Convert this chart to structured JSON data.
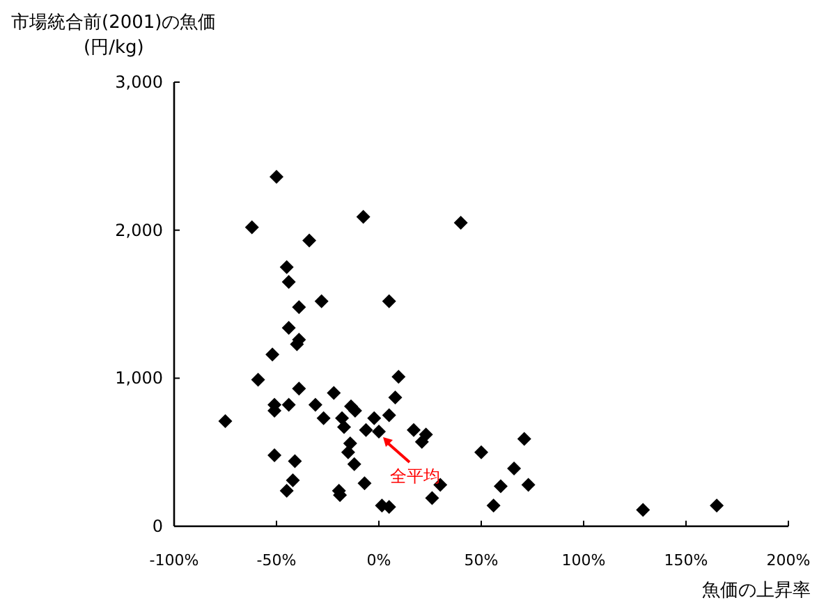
{
  "chart_data": {
    "type": "scatter",
    "ylabel": "市場統合前(2001)の魚価\n(円/kg)",
    "xlabel": "魚価の上昇率",
    "marker": "diamond",
    "color": "#000000",
    "x": [
      -50,
      -62,
      -7.6,
      -34,
      -45,
      -44,
      -39,
      -28,
      5,
      -44,
      -39,
      -40,
      -52,
      -59,
      9.6,
      -39,
      -22,
      8,
      -51,
      -51,
      -44,
      -31,
      -13.6,
      -11.6,
      -27,
      -75,
      -18,
      -17,
      -2.3,
      5,
      -6.3,
      0,
      17,
      23,
      21,
      -14,
      -15,
      -51,
      -41,
      -12,
      -42,
      -7,
      -45,
      -19.5,
      -19,
      1.5,
      5,
      26,
      40,
      30,
      50,
      56,
      59.5,
      66,
      71,
      73,
      129,
      165
    ],
    "values": [
      2360,
      2020,
      2090,
      1930,
      1750,
      1650,
      1480,
      1520,
      1520,
      1340,
      1260,
      1230,
      1160,
      990,
      1010,
      930,
      900,
      870,
      820,
      780,
      820,
      820,
      810,
      780,
      730,
      710,
      730,
      670,
      730,
      750,
      650,
      640,
      650,
      620,
      570,
      560,
      500,
      480,
      440,
      420,
      310,
      290,
      240,
      240,
      210,
      140,
      130,
      190,
      2050,
      280,
      500,
      140,
      270,
      390,
      590,
      280,
      110,
      140
    ],
    "xlim": [
      -100,
      200
    ],
    "ylim": [
      0,
      3000
    ],
    "xticks": [
      {
        "value": -100,
        "label": "-100%"
      },
      {
        "value": -50,
        "label": "-50%"
      },
      {
        "value": 0,
        "label": "0%"
      },
      {
        "value": 50,
        "label": "50%"
      },
      {
        "value": 100,
        "label": "100%"
      },
      {
        "value": 150,
        "label": "150%"
      },
      {
        "value": 200,
        "label": "200%"
      }
    ],
    "yticks": [
      {
        "value": 0,
        "label": "0"
      },
      {
        "value": 1000,
        "label": "1,000"
      },
      {
        "value": 2000,
        "label": "2,000"
      },
      {
        "value": 3000,
        "label": "3,000"
      }
    ],
    "annotations": [
      {
        "text": "全平均",
        "x": 0,
        "y": 640
      }
    ]
  }
}
